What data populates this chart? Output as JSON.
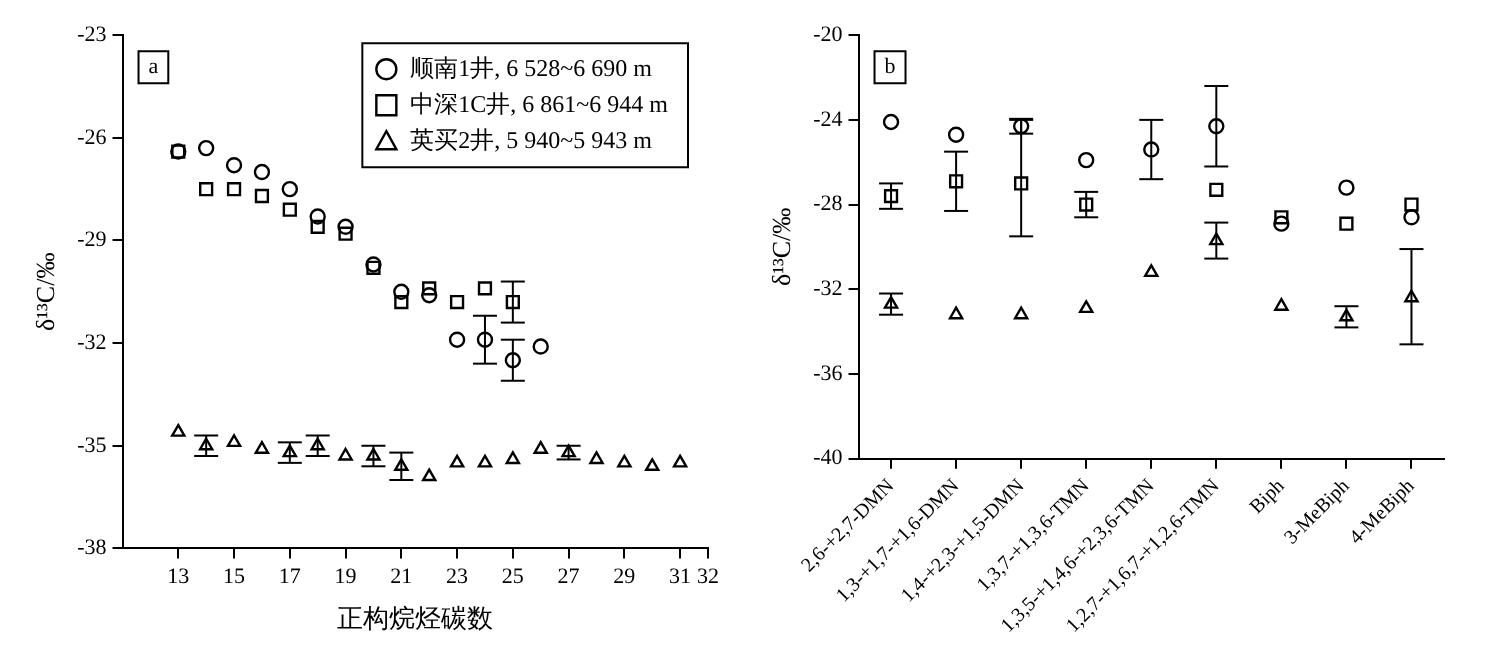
{
  "chart_data": [
    {
      "type": "scatter",
      "xlabel": "正构烷烃碳数",
      "ylabel": "δ¹³C/‰",
      "annotations": [
        "a"
      ],
      "xlim": [
        11,
        32
      ],
      "xticks": [
        13,
        15,
        17,
        19,
        21,
        23,
        25,
        27,
        29,
        31,
        32
      ],
      "ylim": [
        -38,
        -23
      ],
      "yticks": [
        -38,
        -35,
        -32,
        -29,
        -26,
        -23
      ],
      "grid": false,
      "legend": "top right",
      "series": [
        {
          "name": "顺南1井, 6 528~6 690 m",
          "color": "#000000",
          "marker": "circle",
          "x": [
            13,
            14,
            15,
            16,
            17,
            18,
            19,
            20,
            21,
            22,
            23,
            24,
            25,
            26
          ],
          "values": [
            -26.4,
            -26.3,
            -26.8,
            -27.0,
            -27.5,
            -28.3,
            -28.6,
            -29.7,
            -30.5,
            -30.6,
            -31.9,
            -31.9,
            -32.5,
            -32.1
          ],
          "errors": [
            null,
            null,
            null,
            null,
            null,
            null,
            null,
            null,
            null,
            null,
            null,
            0.7,
            0.6,
            null
          ]
        },
        {
          "name": "中深1C井, 6 861~6 944 m",
          "color": "#000000",
          "marker": "square",
          "x": [
            13,
            14,
            15,
            16,
            17,
            18,
            19,
            20,
            21,
            22,
            23,
            24,
            25
          ],
          "values": [
            -26.4,
            -27.5,
            -27.5,
            -27.7,
            -28.1,
            -28.6,
            -28.8,
            -29.8,
            -30.8,
            -30.4,
            -30.8,
            -30.4,
            -30.8
          ],
          "errors": [
            null,
            null,
            null,
            null,
            null,
            null,
            null,
            null,
            null,
            null,
            null,
            null,
            0.6
          ]
        },
        {
          "name": "英买2井, 5 940~5 943 m",
          "color": "#000000",
          "marker": "triangle",
          "x": [
            13,
            14,
            15,
            16,
            17,
            18,
            19,
            20,
            21,
            22,
            23,
            24,
            25,
            26,
            27,
            28,
            29,
            30,
            31
          ],
          "values": [
            -34.6,
            -35.0,
            -34.9,
            -35.1,
            -35.2,
            -35.0,
            -35.3,
            -35.3,
            -35.6,
            -35.9,
            -35.5,
            -35.5,
            -35.4,
            -35.1,
            -35.2,
            -35.4,
            -35.5,
            -35.6,
            -35.5
          ],
          "errors": [
            null,
            0.3,
            null,
            null,
            0.3,
            0.3,
            null,
            0.3,
            0.4,
            null,
            null,
            null,
            null,
            null,
            0.2,
            null,
            null,
            null,
            null
          ]
        }
      ]
    },
    {
      "type": "scatter",
      "ylabel": "δ¹³C/‰",
      "annotations": [
        "b"
      ],
      "categories": [
        "2,6-+2,7-DMN",
        "1,3-+1,7-+1,6-DMN",
        "1,4-+2,3-+1,5-DMN",
        "1,3,7-+1,3,6-TMN",
        "1,3,5-+1,4,6-+2,3,6-TMN",
        "1,2,7-+1,6,7-+1,2,6-TMN",
        "Biph",
        "3-MeBiph",
        "4-MeBiph"
      ],
      "ylim": [
        -40,
        -20
      ],
      "yticks": [
        -40,
        -36,
        -32,
        -28,
        -24,
        -20
      ],
      "grid": false,
      "series": [
        {
          "color": "#000000",
          "marker": "circle",
          "values": [
            -24.1,
            -24.7,
            -24.3,
            -25.9,
            -25.4,
            -24.3,
            -28.9,
            -27.2,
            -28.6
          ],
          "errors": [
            null,
            null,
            0.35,
            null,
            1.4,
            1.9,
            null,
            null,
            null
          ]
        },
        {
          "color": "#000000",
          "marker": "square",
          "values": [
            -27.6,
            -26.9,
            -27.0,
            -28.0,
            null,
            -27.3,
            -28.6,
            -28.9,
            -28.0
          ],
          "errors": [
            0.6,
            1.4,
            [
              -29.5,
              -24.0
            ],
            0.6,
            null,
            null,
            null,
            null,
            null
          ]
        },
        {
          "color": "#000000",
          "marker": "triangle",
          "values": [
            -32.7,
            -33.2,
            -33.2,
            -32.9,
            -31.2,
            -29.7,
            -32.8,
            -33.3,
            -32.4
          ],
          "errors": [
            0.5,
            null,
            null,
            null,
            null,
            0.85,
            null,
            0.5,
            [
              -34.6,
              -30.1
            ]
          ]
        }
      ]
    }
  ]
}
